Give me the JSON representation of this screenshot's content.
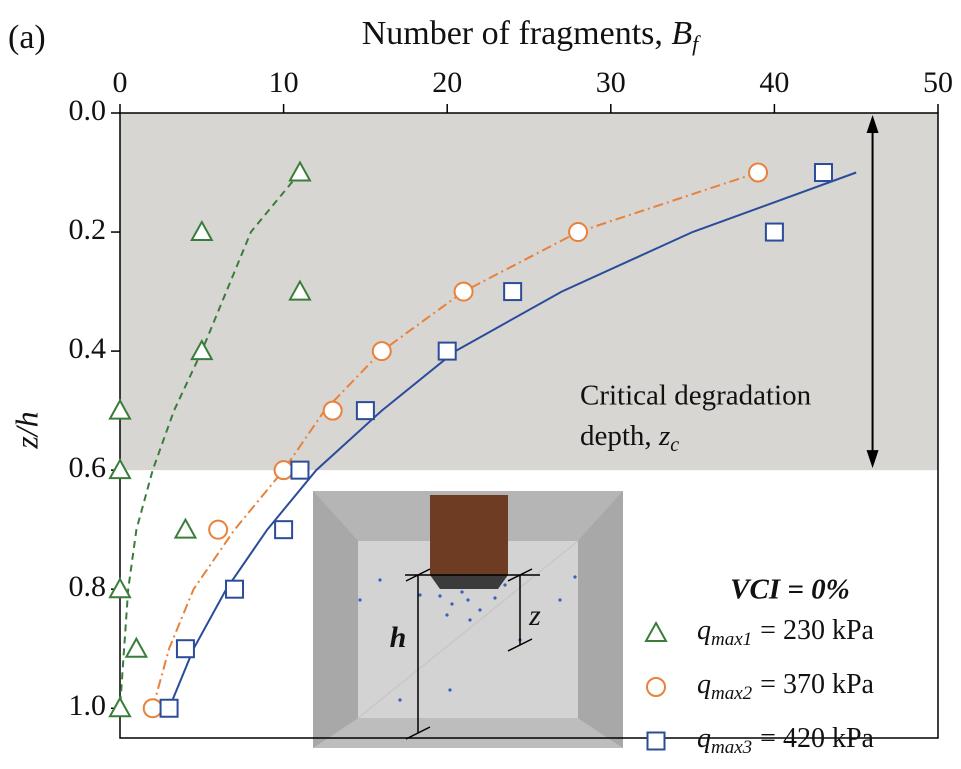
{
  "panel_label": "(a)",
  "chart_data": {
    "type": "scatter",
    "xlabel": "Number of fragments, ",
    "xlabel_symbol": "B",
    "xlabel_subscript": "f",
    "ylabel": "z/h",
    "xlim": [
      0,
      50
    ],
    "xticks": [
      0,
      10,
      20,
      30,
      40,
      50
    ],
    "ylim": [
      0,
      1.05
    ],
    "y_inverted": true,
    "x_axis_position": "top",
    "yticks": [
      {
        "value": 0,
        "label": "0.0"
      },
      0.2,
      0.4,
      0.6,
      0.8,
      {
        "value": 1,
        "label": "1.0"
      }
    ],
    "shaded_region": {
      "y": [
        0,
        0.6
      ],
      "color": "#d8d6d3"
    },
    "annotation": {
      "line1": "Critical degradation",
      "line2": "depth, ",
      "symbol": "z",
      "subscript": "c",
      "arrow_x": 46
    },
    "legend_title": "VCI = 0%",
    "legend_position": "lower right",
    "series": [
      {
        "name_symbol": "q",
        "name_subscript": "max1",
        "name": "= 230 kPa",
        "marker": "triangle",
        "color": "#3a7d3a",
        "x": [
          11,
          5,
          11,
          5,
          0,
          0,
          4,
          0,
          1,
          0
        ],
        "values": [
          0.1,
          0.2,
          0.3,
          0.4,
          0.5,
          0.6,
          0.7,
          0.8,
          0.9,
          1.0
        ]
      },
      {
        "name_symbol": "q",
        "name_subscript": "max2",
        "name": "= 370 kPa",
        "marker": "circle",
        "color": "#e8813a",
        "x": [
          39,
          28,
          21,
          16,
          13,
          10,
          6,
          2
        ],
        "values": [
          0.1,
          0.2,
          0.3,
          0.4,
          0.5,
          0.6,
          0.7,
          1.0
        ]
      },
      {
        "name_symbol": "q",
        "name_subscript": "max3",
        "name": "= 420 kPa",
        "marker": "square",
        "color": "#2b4c9b",
        "x": [
          43,
          40,
          24,
          20,
          15,
          11,
          10,
          7,
          4,
          3
        ],
        "values": [
          0.1,
          0.2,
          0.3,
          0.4,
          0.5,
          0.6,
          0.7,
          0.8,
          0.9,
          1.0
        ]
      }
    ],
    "fits": [
      {
        "color": "#3a7d3a",
        "dash": "dashed",
        "x": [
          11,
          8,
          5,
          3.3,
          2,
          1,
          0.5,
          0
        ],
        "values": [
          0.1,
          0.2,
          0.4,
          0.5,
          0.6,
          0.7,
          0.8,
          1.0
        ]
      },
      {
        "color": "#e8813a",
        "dash": "dashdot",
        "x": [
          39,
          28,
          21,
          16,
          12.5,
          10,
          7,
          4.5,
          3,
          2
        ],
        "values": [
          0.1,
          0.2,
          0.3,
          0.4,
          0.5,
          0.6,
          0.7,
          0.8,
          0.9,
          1.0
        ]
      },
      {
        "color": "#2b4c9b",
        "dash": "solid",
        "x": [
          45,
          35,
          27,
          20.5,
          16,
          12,
          9,
          6.5,
          4.5,
          3
        ],
        "values": [
          0.1,
          0.2,
          0.3,
          0.4,
          0.5,
          0.6,
          0.7,
          0.8,
          0.9,
          1.0
        ]
      }
    ]
  },
  "inset": {
    "h_label": "h",
    "z_label": "z"
  }
}
